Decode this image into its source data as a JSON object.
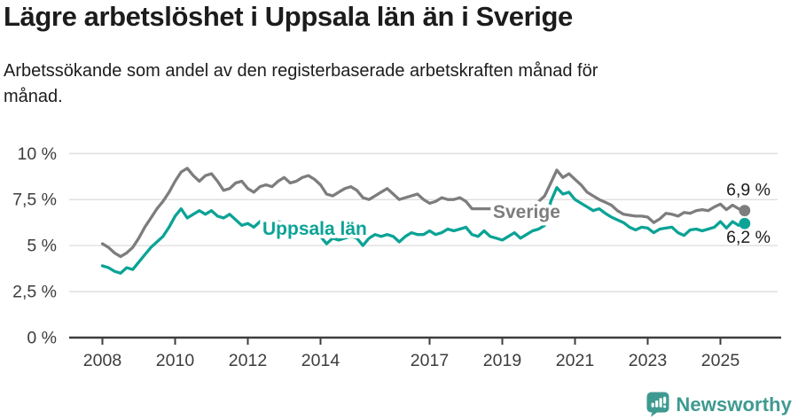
{
  "header": {
    "title": "Lägre arbetslöshet i Uppsala län än i Sverige",
    "subtitle_line1": "Arbetssökande som andel av den registerbaserade arbetskraften månad för",
    "subtitle_line2": "månad."
  },
  "colors": {
    "sweden_line": "#7d7d7d",
    "uppsala_line": "#0aa396",
    "axis": "#3d3d3d",
    "grid": "#dcdcdc",
    "text": "#1c1c1c",
    "logo_teal": "#3e9a91",
    "background": "#ffffff"
  },
  "chart_data": {
    "type": "line",
    "title": "Lägre arbetslöshet i Uppsala län än i Sverige",
    "subtitle": "Arbetssökande som andel av den registerbaserade arbetskraften månad för månad.",
    "unit": "%",
    "grid": "horizontal",
    "legend_position": "inline-labels",
    "x_start": 2008.0,
    "x_step_years": 0.1666667,
    "xlim": [
      2008,
      2025.67
    ],
    "ylim": [
      0,
      10.5
    ],
    "x_ticks": [
      2008,
      2010,
      2012,
      2014,
      2017,
      2019,
      2021,
      2023,
      2025
    ],
    "x_tick_labels": [
      "2008",
      "2010",
      "2012",
      "2014",
      "2017",
      "2019",
      "2021",
      "2023",
      "2025"
    ],
    "y_ticks": [
      0,
      2.5,
      5,
      7.5,
      10
    ],
    "y_tick_labels": [
      "0 %",
      "2,5 %",
      "5 %",
      "7,5 %",
      "10 %"
    ],
    "series": [
      {
        "name": "Sverige",
        "color": "#7d7d7d",
        "end_label": "6,9 %",
        "end_value": 6.9,
        "values": [
          5.1,
          4.9,
          4.6,
          4.4,
          4.6,
          4.9,
          5.4,
          6.0,
          6.5,
          7.0,
          7.4,
          7.9,
          8.5,
          9.0,
          9.2,
          8.8,
          8.5,
          8.8,
          8.9,
          8.5,
          8.0,
          8.1,
          8.4,
          8.5,
          8.1,
          7.9,
          8.2,
          8.3,
          8.2,
          8.5,
          8.7,
          8.4,
          8.5,
          8.7,
          8.8,
          8.6,
          8.3,
          7.8,
          7.7,
          7.9,
          8.1,
          8.2,
          8.0,
          7.6,
          7.5,
          7.7,
          7.9,
          8.1,
          7.8,
          7.5,
          7.6,
          7.7,
          7.8,
          7.5,
          7.3,
          7.4,
          7.6,
          7.5,
          7.5,
          7.6,
          7.4,
          7.0,
          7.0,
          7.0,
          7.0,
          7.0,
          6.9,
          6.8,
          7.0,
          7.0,
          7.1,
          7.2,
          7.4,
          7.7,
          8.4,
          9.1,
          8.7,
          8.9,
          8.6,
          8.3,
          7.9,
          7.7,
          7.5,
          7.35,
          7.2,
          6.9,
          6.7,
          6.65,
          6.6,
          6.6,
          6.55,
          6.25,
          6.45,
          6.75,
          6.7,
          6.6,
          6.8,
          6.75,
          6.9,
          6.95,
          6.9,
          7.1,
          7.25,
          6.95,
          7.2,
          7.0,
          6.9
        ]
      },
      {
        "name": "Uppsala län",
        "color": "#0aa396",
        "end_label": "6,2 %",
        "end_value": 6.2,
        "values": [
          3.9,
          3.8,
          3.6,
          3.5,
          3.8,
          3.7,
          4.1,
          4.5,
          4.9,
          5.2,
          5.5,
          6.0,
          6.6,
          7.0,
          6.5,
          6.7,
          6.9,
          6.7,
          6.9,
          6.6,
          6.5,
          6.7,
          6.4,
          6.1,
          6.2,
          6.0,
          6.3,
          6.1,
          6.2,
          6.3,
          6.2,
          6.0,
          6.2,
          6.1,
          5.9,
          5.6,
          5.5,
          5.1,
          5.4,
          5.3,
          5.4,
          5.5,
          5.4,
          5.0,
          5.4,
          5.6,
          5.5,
          5.6,
          5.5,
          5.2,
          5.5,
          5.7,
          5.6,
          5.6,
          5.8,
          5.6,
          5.7,
          5.9,
          5.8,
          5.9,
          6.0,
          5.6,
          5.5,
          5.8,
          5.5,
          5.4,
          5.3,
          5.5,
          5.7,
          5.4,
          5.6,
          5.8,
          5.9,
          6.1,
          7.4,
          8.15,
          7.8,
          7.9,
          7.5,
          7.3,
          7.1,
          6.9,
          7.0,
          6.75,
          6.55,
          6.4,
          6.25,
          6.0,
          5.85,
          6.0,
          5.95,
          5.7,
          5.9,
          5.95,
          6.0,
          5.7,
          5.55,
          5.85,
          5.9,
          5.8,
          5.9,
          6.0,
          6.3,
          5.95,
          6.3,
          6.1,
          6.2
        ]
      }
    ]
  },
  "footer": {
    "brand": "Newsworthy"
  }
}
